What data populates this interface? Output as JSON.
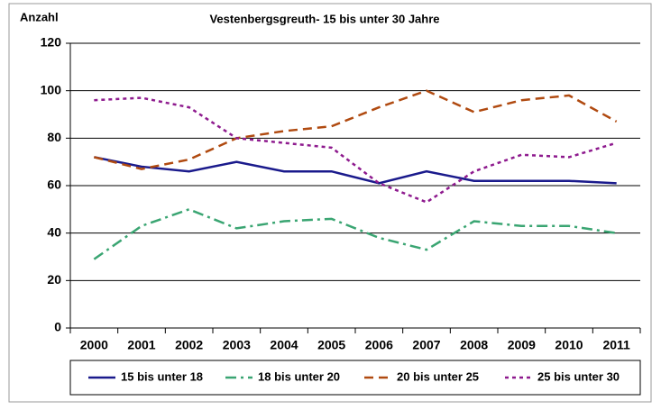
{
  "chart_data": {
    "type": "line",
    "title": "Vestenbergsgreuth- 15 bis unter 30 Jahre",
    "y_label": "Anzahl",
    "categories": [
      "2000",
      "2001",
      "2002",
      "2003",
      "2004",
      "2005",
      "2006",
      "2007",
      "2008",
      "2009",
      "2010",
      "2011"
    ],
    "series": [
      {
        "name": "15 bis unter 18",
        "color": "#1a1a8c",
        "dash": "solid",
        "values": [
          72,
          68,
          66,
          70,
          66,
          66,
          61,
          66,
          62,
          62,
          62,
          61
        ]
      },
      {
        "name": "18 bis unter 20",
        "color": "#3aa572",
        "dash": "dashdot",
        "values": [
          29,
          43,
          50,
          42,
          45,
          46,
          38,
          33,
          45,
          43,
          43,
          40
        ]
      },
      {
        "name": "20 bis unter 25",
        "color": "#b04a10",
        "dash": "dashed",
        "values": [
          72,
          67,
          71,
          80,
          83,
          85,
          93,
          100,
          91,
          96,
          98,
          87
        ]
      },
      {
        "name": "25 bis unter 30",
        "color": "#8e1a8e",
        "dash": "dotted",
        "values": [
          96,
          97,
          93,
          80,
          78,
          76,
          61,
          53,
          66,
          73,
          72,
          78
        ]
      }
    ],
    "ylim": [
      0,
      120
    ],
    "yticks": [
      0,
      20,
      40,
      60,
      80,
      100,
      120
    ],
    "grid": true,
    "legend": "bottom"
  }
}
